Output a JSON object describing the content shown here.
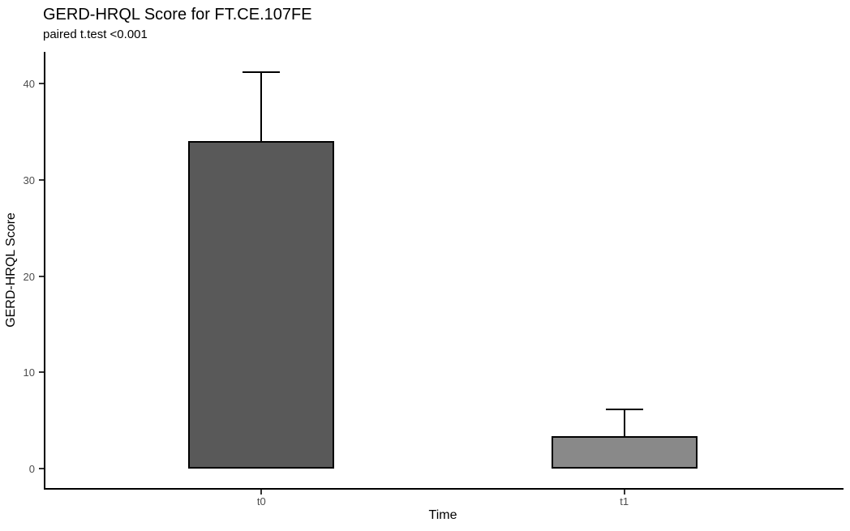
{
  "chart_data": {
    "type": "bar",
    "title": "GERD-HRQL Score for FT.CE.107FE",
    "subtitle": "paired t.test <0.001",
    "xlabel": "Time",
    "ylabel": "GERD-HRQL Score",
    "categories": [
      "t0",
      "t1"
    ],
    "values": [
      34,
      3.4
    ],
    "error_upper": [
      41.2,
      6.2
    ],
    "yticks": [
      0,
      10,
      20,
      30,
      40
    ],
    "ylim": [
      0,
      43.3
    ],
    "bar_colors": [
      "#595959",
      "#898989"
    ],
    "bar_border_color": "#000000",
    "axis_line_color": "#000000",
    "tick_label_color": "#4d4d4d",
    "background": "#ffffff",
    "grid": "off",
    "legend": "none"
  }
}
